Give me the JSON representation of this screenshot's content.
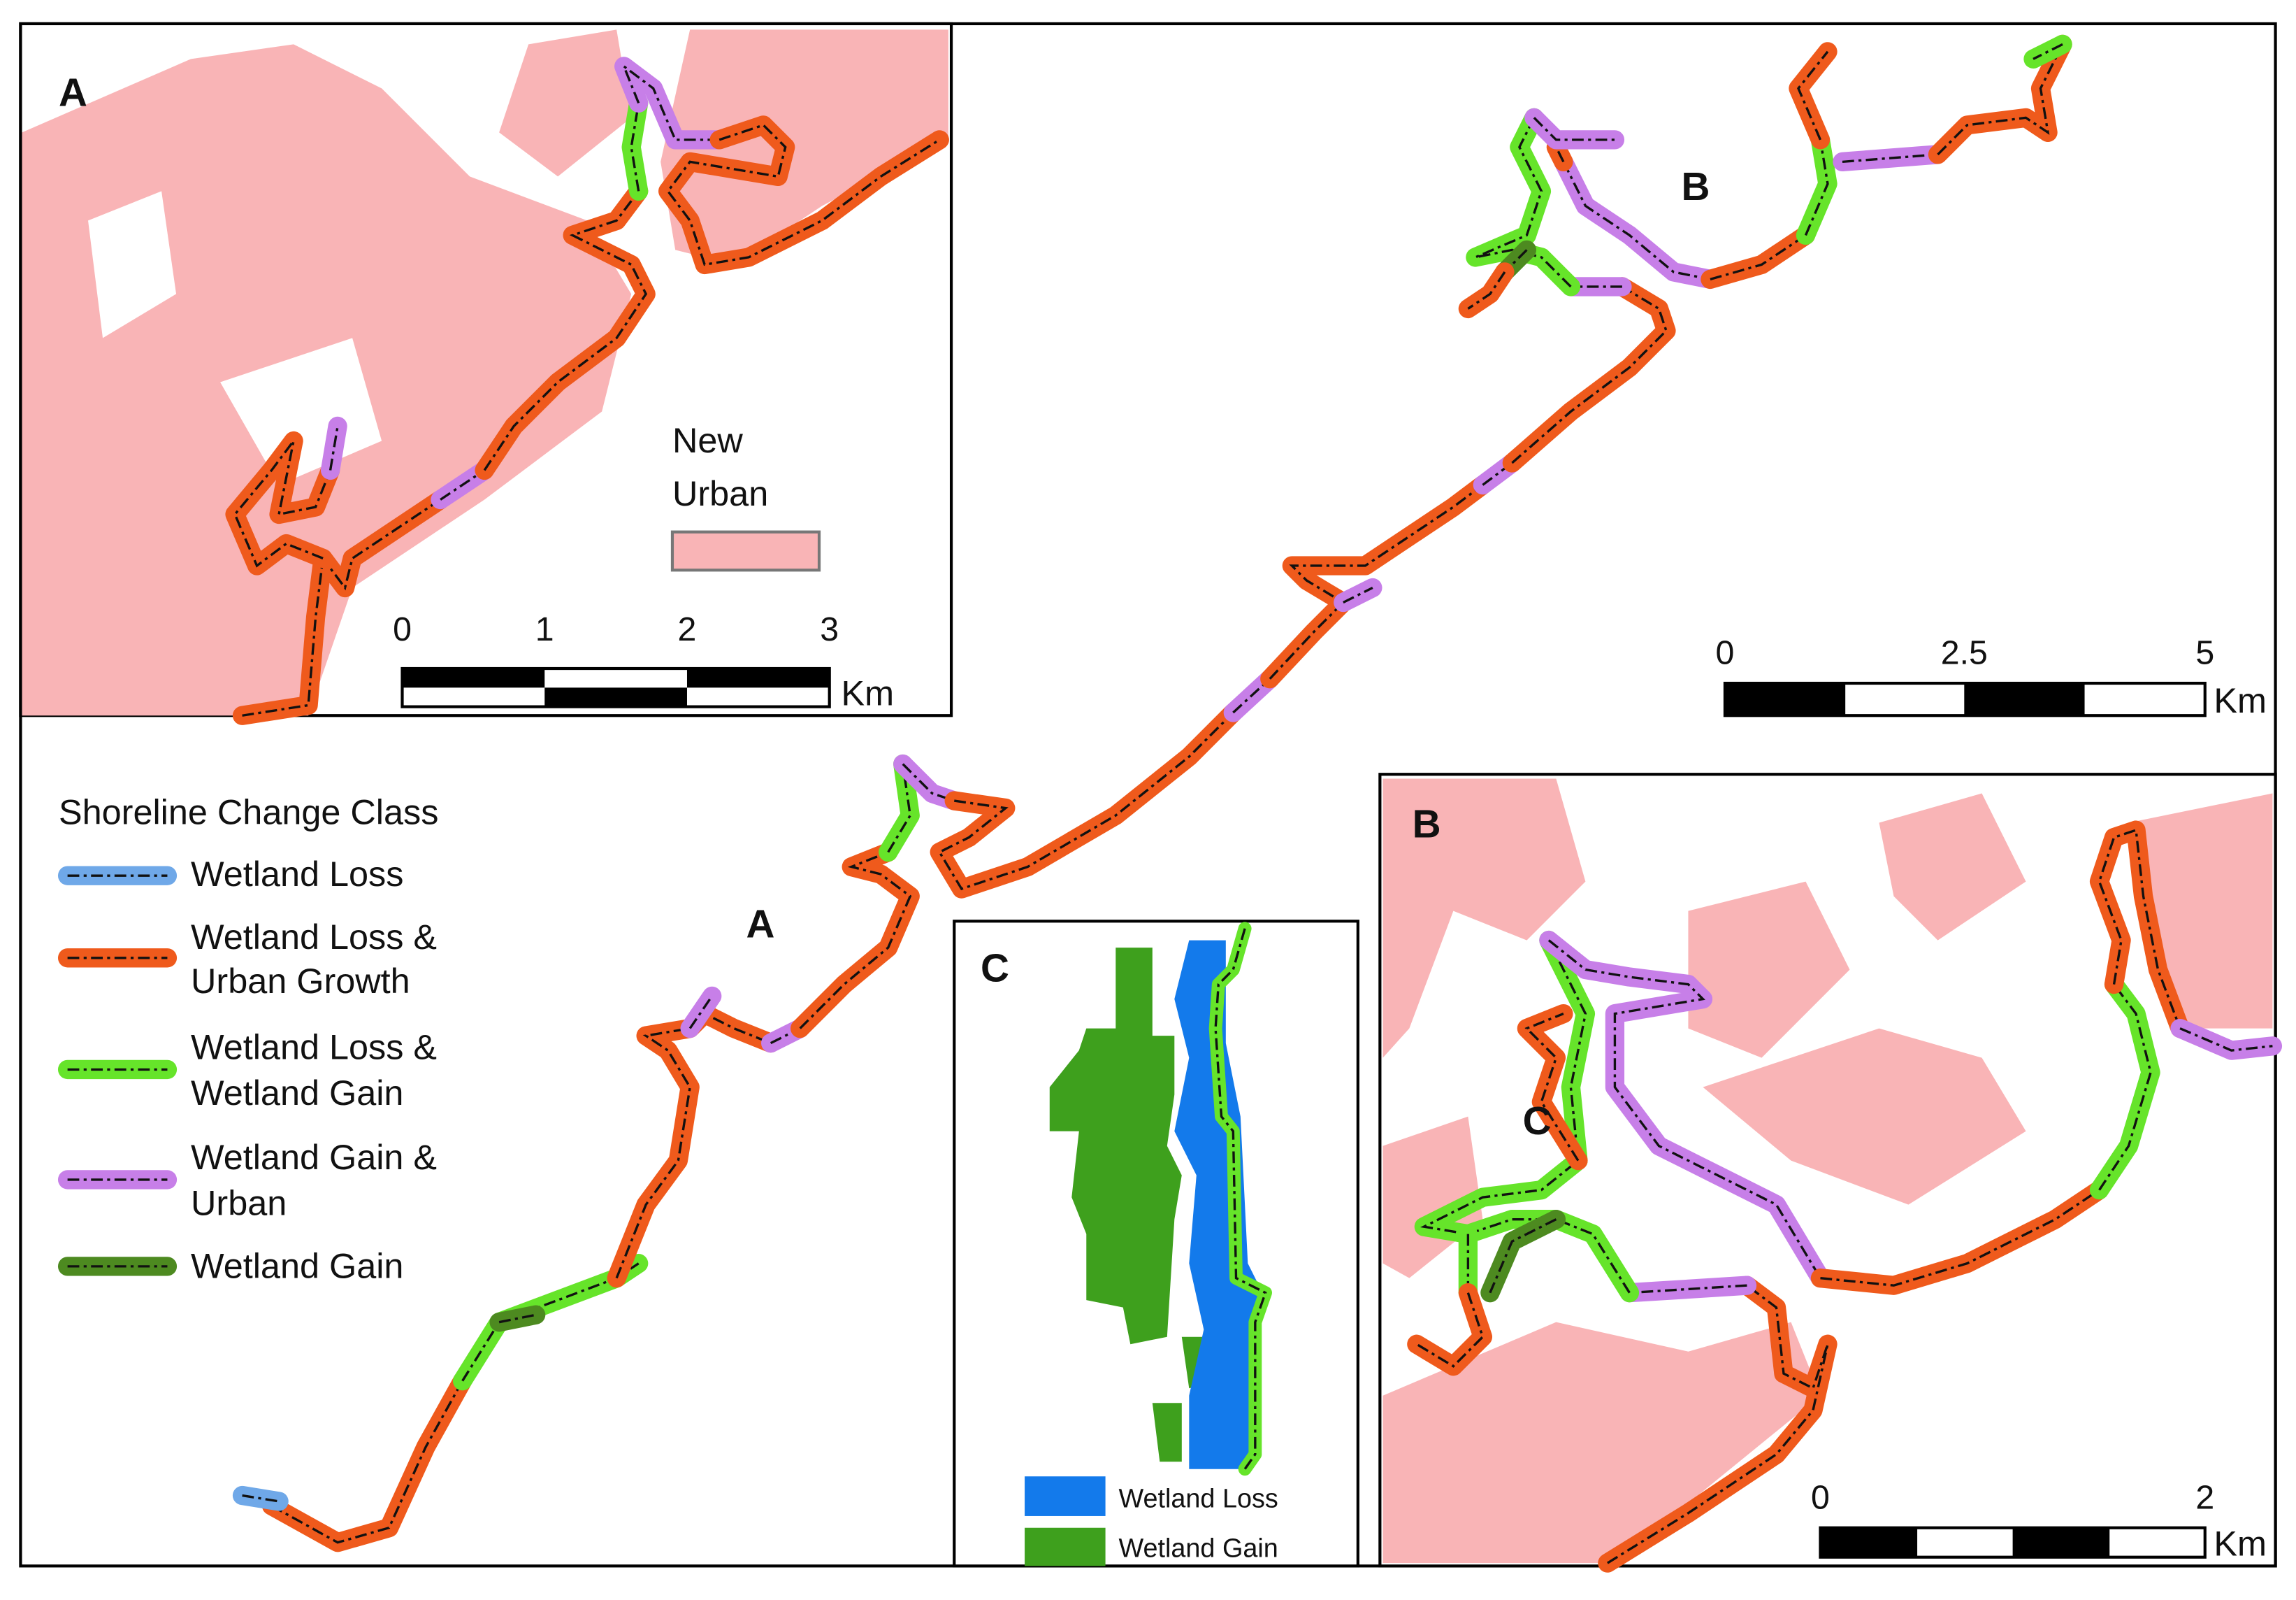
{
  "inset_a": {
    "label": "A",
    "urban_legend": [
      "New",
      "Urban"
    ],
    "scale": {
      "ticks": [
        0,
        1,
        2,
        3
      ],
      "unit": "Km"
    }
  },
  "main_map": {
    "labels": [
      "A",
      "B"
    ],
    "scale": {
      "ticks": [
        0,
        2.5,
        5
      ],
      "unit": "Km"
    },
    "legend": {
      "title": "Shoreline Change Class",
      "items": [
        [
          "Wetland Loss"
        ],
        [
          "Wetland Loss &",
          "Urban Growth"
        ],
        [
          "Wetland Loss &",
          "Wetland Gain"
        ],
        [
          "Wetland Gain &",
          "Urban"
        ],
        [
          "Wetland Gain"
        ]
      ]
    }
  },
  "inset_b": {
    "label": "B",
    "site_label": "C",
    "scale": {
      "ticks": [
        0,
        2
      ],
      "unit": "Km"
    }
  },
  "inset_c": {
    "label": "C",
    "legend": [
      "Wetland Loss",
      "Wetland Gain"
    ]
  }
}
